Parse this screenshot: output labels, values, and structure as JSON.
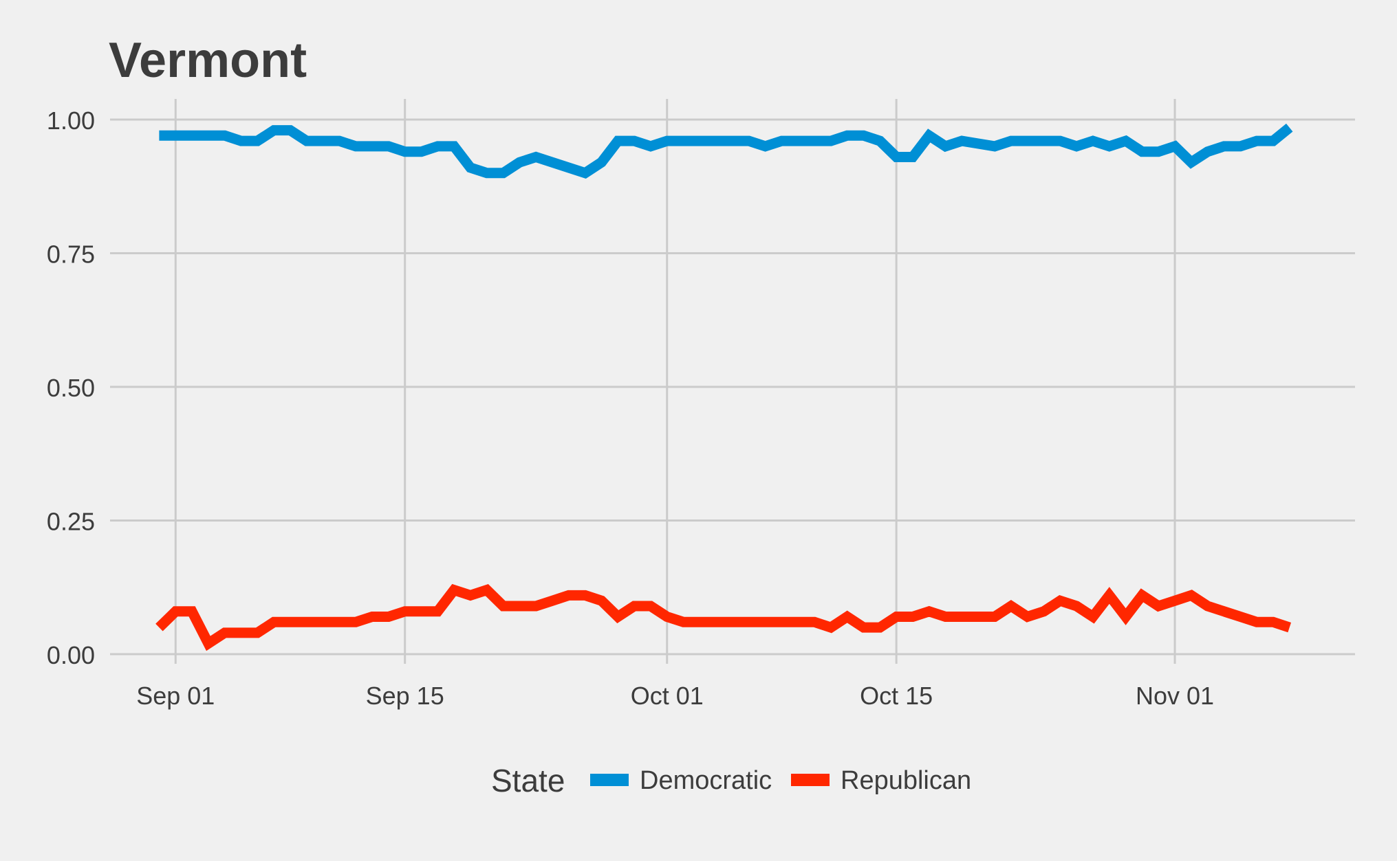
{
  "chart_data": {
    "type": "line",
    "title": "Vermont",
    "xlabel": "",
    "ylabel": "",
    "x_axis_type": "date",
    "xlim": [
      "2016-08-28",
      "2016-11-12"
    ],
    "ylim": [
      0,
      1.0
    ],
    "x_ticks": [
      {
        "date": "2016-09-01",
        "label": "Sep 01"
      },
      {
        "date": "2016-09-15",
        "label": "Sep 15"
      },
      {
        "date": "2016-10-01",
        "label": "Oct 01"
      },
      {
        "date": "2016-10-15",
        "label": "Oct 15"
      },
      {
        "date": "2016-11-01",
        "label": "Nov 01"
      }
    ],
    "y_ticks": [
      {
        "value": 0.0,
        "label": "0.00"
      },
      {
        "value": 0.25,
        "label": "0.25"
      },
      {
        "value": 0.5,
        "label": "0.50"
      },
      {
        "value": 0.75,
        "label": "0.75"
      },
      {
        "value": 1.0,
        "label": "1.00"
      }
    ],
    "grid": true,
    "legend": {
      "title": "State",
      "position": "bottom"
    },
    "x": [
      "2016-08-31",
      "2016-09-01",
      "2016-09-02",
      "2016-09-03",
      "2016-09-04",
      "2016-09-05",
      "2016-09-06",
      "2016-09-07",
      "2016-09-08",
      "2016-09-09",
      "2016-09-10",
      "2016-09-11",
      "2016-09-12",
      "2016-09-13",
      "2016-09-14",
      "2016-09-15",
      "2016-09-16",
      "2016-09-17",
      "2016-09-18",
      "2016-09-19",
      "2016-09-20",
      "2016-09-21",
      "2016-09-22",
      "2016-09-23",
      "2016-09-24",
      "2016-09-25",
      "2016-09-26",
      "2016-09-27",
      "2016-09-28",
      "2016-09-29",
      "2016-09-30",
      "2016-10-01",
      "2016-10-02",
      "2016-10-03",
      "2016-10-04",
      "2016-10-05",
      "2016-10-06",
      "2016-10-07",
      "2016-10-08",
      "2016-10-09",
      "2016-10-10",
      "2016-10-11",
      "2016-10-12",
      "2016-10-13",
      "2016-10-14",
      "2016-10-15",
      "2016-10-16",
      "2016-10-17",
      "2016-10-18",
      "2016-10-19",
      "2016-10-20",
      "2016-10-21",
      "2016-10-22",
      "2016-10-23",
      "2016-10-24",
      "2016-10-25",
      "2016-10-26",
      "2016-10-27",
      "2016-10-28",
      "2016-10-29",
      "2016-10-30",
      "2016-10-31",
      "2016-11-01",
      "2016-11-02",
      "2016-11-03",
      "2016-11-04",
      "2016-11-05",
      "2016-11-06",
      "2016-11-07",
      "2016-11-08"
    ],
    "series": [
      {
        "name": "Democratic",
        "color": "#008fd5",
        "values": [
          0.97,
          0.97,
          0.97,
          0.97,
          0.97,
          0.96,
          0.96,
          0.98,
          0.98,
          0.96,
          0.96,
          0.96,
          0.95,
          0.95,
          0.95,
          0.94,
          0.94,
          0.95,
          0.95,
          0.91,
          0.9,
          0.9,
          0.92,
          0.93,
          0.92,
          0.91,
          0.9,
          0.92,
          0.96,
          0.96,
          0.95,
          0.96,
          0.96,
          0.96,
          0.96,
          0.96,
          0.96,
          0.95,
          0.96,
          0.96,
          0.96,
          0.96,
          0.97,
          0.97,
          0.96,
          0.93,
          0.93,
          0.97,
          0.95,
          0.96,
          0.955,
          0.95,
          0.96,
          0.96,
          0.96,
          0.96,
          0.95,
          0.96,
          0.95,
          0.96,
          0.94,
          0.94,
          0.95,
          0.92,
          0.94,
          0.95,
          0.95,
          0.96,
          0.96,
          0.985
        ]
      },
      {
        "name": "Republican",
        "color": "#ff2700",
        "values": [
          0.05,
          0.08,
          0.08,
          0.02,
          0.04,
          0.04,
          0.04,
          0.06,
          0.06,
          0.06,
          0.06,
          0.06,
          0.06,
          0.07,
          0.07,
          0.08,
          0.08,
          0.08,
          0.12,
          0.11,
          0.12,
          0.09,
          0.09,
          0.09,
          0.1,
          0.11,
          0.11,
          0.1,
          0.07,
          0.09,
          0.09,
          0.07,
          0.06,
          0.06,
          0.06,
          0.06,
          0.06,
          0.06,
          0.06,
          0.06,
          0.06,
          0.05,
          0.07,
          0.05,
          0.05,
          0.07,
          0.07,
          0.08,
          0.07,
          0.07,
          0.07,
          0.07,
          0.09,
          0.07,
          0.08,
          0.1,
          0.09,
          0.07,
          0.11,
          0.07,
          0.11,
          0.09,
          0.1,
          0.11,
          0.09,
          0.08,
          0.07,
          0.06,
          0.06,
          0.05
        ]
      }
    ]
  }
}
